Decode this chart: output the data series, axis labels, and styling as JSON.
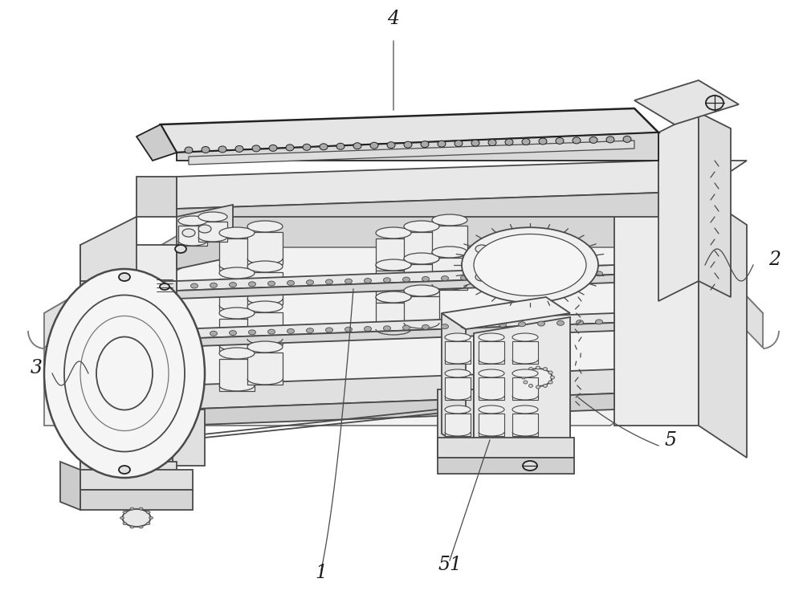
{
  "background_color": "#ffffff",
  "lc": "#4a4a4a",
  "lcd": "#222222",
  "lcl": "#777777",
  "lc_fill": "#e8e8e8",
  "lc_fill2": "#d5d5d5",
  "lc_fill3": "#c8c8c8",
  "lc_white": "#f5f5f5",
  "fig_width": 10.0,
  "fig_height": 7.46,
  "dpi": 100,
  "label_fontsize": 17,
  "label_color": "#1a1a1a"
}
